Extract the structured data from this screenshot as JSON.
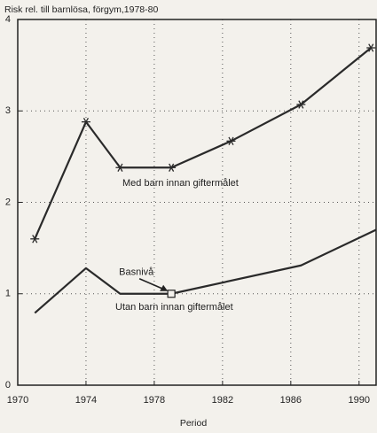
{
  "chart_data": {
    "type": "line",
    "title": "Risk rel. till barnlösa, förgym,1978-80",
    "x_label": "Period",
    "xlim": [
      1970,
      1991
    ],
    "xticks": [
      1970,
      1974,
      1978,
      1982,
      1986,
      1990
    ],
    "ylim": [
      0,
      4
    ],
    "yticks": [
      0,
      1,
      2,
      3,
      4
    ],
    "grid": true,
    "series": [
      {
        "name": "Med barn innan giftermålet",
        "color": "#2a2a2a",
        "marker": "asterisk",
        "x": [
          1971,
          1974,
          1976,
          1979,
          1982.5,
          1986.6,
          1990.7
        ],
        "values": [
          1.6,
          2.88,
          2.38,
          2.38,
          2.67,
          3.07,
          3.69
        ]
      },
      {
        "name": "Utan barn innan giftermålet",
        "color": "#2a2a2a",
        "x": [
          1971,
          1974,
          1976,
          1979,
          1986.6,
          1991
        ],
        "values": [
          0.79,
          1.28,
          1.0,
          1.0,
          1.31,
          1.7
        ]
      }
    ],
    "annotations": [
      {
        "text": "Basnivå",
        "series": 1,
        "point": 3,
        "marker": "square"
      }
    ]
  }
}
